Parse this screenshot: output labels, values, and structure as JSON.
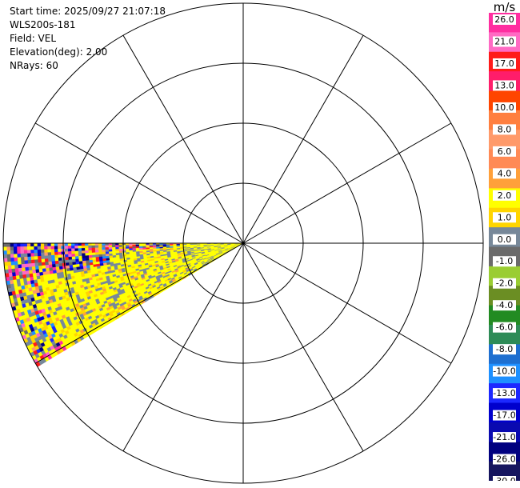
{
  "info": {
    "start_time": "Start time: 2025/09/27 21:07:18",
    "instrument": "WLS200s-181",
    "field": "Field: VEL",
    "elevation": "Elevation(deg): 2.00",
    "nrays": "NRays: 60"
  },
  "colorbar": {
    "unit": "m/s",
    "ticks": [
      "26.0",
      "21.0",
      "17.0",
      "13.0",
      "10.0",
      "8.0",
      "6.0",
      "4.0",
      "2.0",
      "1.0",
      "0.0",
      "-1.0",
      "-2.0",
      "-4.0",
      "-6.0",
      "-8.0",
      "-10.0",
      "-13.0",
      "-17.0",
      "-21.0",
      "-26.0",
      "-30.0"
    ],
    "colors": [
      "#ff2ea0",
      "#ff6ac3",
      "#ff1a1a",
      "#ff1d6a",
      "#ff4500",
      "#ff7f3f",
      "#ff9a6a",
      "#ff8a55",
      "#ffa03a",
      "#ffff00",
      "#ffd500",
      "#778899",
      "#6b6b6b",
      "#9acd32",
      "#6b8e23",
      "#228b22",
      "#2e8b57",
      "#1e6fd0",
      "#1e90ff",
      "#1c28ff",
      "#0000cd",
      "#0a0ab0",
      "#000080",
      "#15155f"
    ]
  },
  "chart_data": {
    "type": "heatmap",
    "subtype": "polar PPI scan",
    "field": "VEL",
    "units": "m/s",
    "elevation_deg": 2.0,
    "n_rays": 60,
    "azimuth_sector_deg": [
      240,
      270
    ],
    "rings": 4,
    "spokes_every_deg": 30,
    "color_scale_ticks": [
      26.0,
      21.0,
      17.0,
      13.0,
      10.0,
      8.0,
      6.0,
      4.0,
      2.0,
      1.0,
      0.0,
      -1.0,
      -2.0,
      -4.0,
      -6.0,
      -8.0,
      -10.0,
      -13.0,
      -17.0,
      -21.0,
      -26.0,
      -30.0
    ],
    "near_range_dominant": "1.0 to 2.0",
    "far_range": "mixed noise",
    "grid": true
  }
}
